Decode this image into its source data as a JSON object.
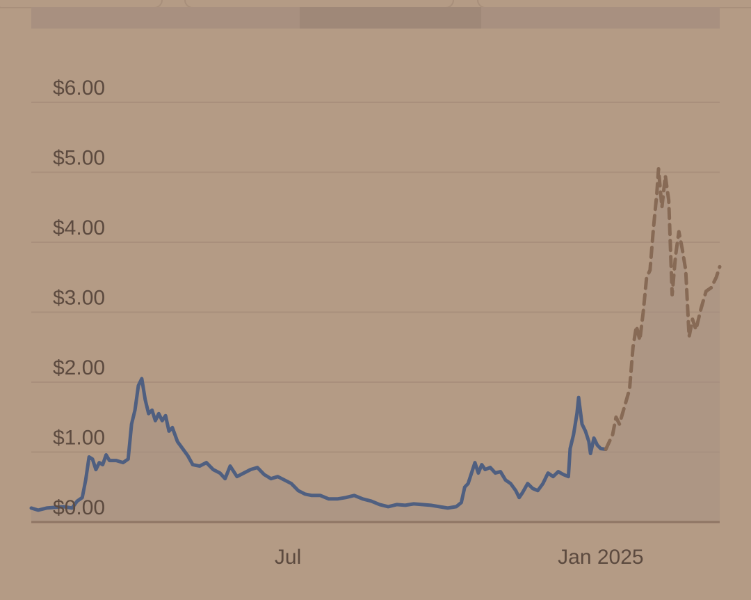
{
  "chart_data": {
    "type": "line",
    "title": "",
    "xlabel": "",
    "ylabel": "",
    "ylim": [
      0,
      6
    ],
    "y_ticks": [
      "$0.00",
      "$1.00",
      "$2.00",
      "$3.00",
      "$4.00",
      "$5.00",
      "$6.00"
    ],
    "y_tick_values": [
      0,
      1,
      2,
      3,
      4,
      5,
      6
    ],
    "x_ticks": [
      {
        "label": "Jul",
        "date": "2024-07-01"
      },
      {
        "label": "Jan 2025",
        "date": "2025-01-01"
      }
    ],
    "xlim": [
      "2024-02-01",
      "2025-03-12"
    ],
    "grid": true,
    "legend": "none",
    "colors": {
      "historical": "#4f5f80",
      "projected": "#876a55",
      "grid": "#a98f7c",
      "background": "#b49b85"
    },
    "series": [
      {
        "style": "solid",
        "points": [
          [
            "2024-02-01",
            0.2
          ],
          [
            "2024-02-05",
            0.17
          ],
          [
            "2024-02-10",
            0.2
          ],
          [
            "2024-02-15",
            0.21
          ],
          [
            "2024-02-20",
            0.22
          ],
          [
            "2024-02-25",
            0.2
          ],
          [
            "2024-02-28",
            0.3
          ],
          [
            "2024-03-02",
            0.35
          ],
          [
            "2024-03-04",
            0.6
          ],
          [
            "2024-03-06",
            0.93
          ],
          [
            "2024-03-08",
            0.9
          ],
          [
            "2024-03-10",
            0.75
          ],
          [
            "2024-03-12",
            0.85
          ],
          [
            "2024-03-14",
            0.82
          ],
          [
            "2024-03-16",
            0.96
          ],
          [
            "2024-03-18",
            0.88
          ],
          [
            "2024-03-22",
            0.88
          ],
          [
            "2024-03-26",
            0.85
          ],
          [
            "2024-03-29",
            0.9
          ],
          [
            "2024-03-31",
            1.4
          ],
          [
            "2024-04-02",
            1.6
          ],
          [
            "2024-04-04",
            1.95
          ],
          [
            "2024-04-06",
            2.05
          ],
          [
            "2024-04-08",
            1.75
          ],
          [
            "2024-04-10",
            1.55
          ],
          [
            "2024-04-12",
            1.6
          ],
          [
            "2024-04-14",
            1.45
          ],
          [
            "2024-04-16",
            1.55
          ],
          [
            "2024-04-18",
            1.45
          ],
          [
            "2024-04-20",
            1.52
          ],
          [
            "2024-04-22",
            1.3
          ],
          [
            "2024-04-24",
            1.35
          ],
          [
            "2024-04-27",
            1.15
          ],
          [
            "2024-04-30",
            1.05
          ],
          [
            "2024-05-03",
            0.95
          ],
          [
            "2024-05-06",
            0.82
          ],
          [
            "2024-05-10",
            0.8
          ],
          [
            "2024-05-14",
            0.85
          ],
          [
            "2024-05-18",
            0.75
          ],
          [
            "2024-05-22",
            0.7
          ],
          [
            "2024-05-25",
            0.62
          ],
          [
            "2024-05-28",
            0.8
          ],
          [
            "2024-06-01",
            0.65
          ],
          [
            "2024-06-05",
            0.7
          ],
          [
            "2024-06-09",
            0.75
          ],
          [
            "2024-06-13",
            0.78
          ],
          [
            "2024-06-17",
            0.68
          ],
          [
            "2024-06-21",
            0.62
          ],
          [
            "2024-06-25",
            0.65
          ],
          [
            "2024-06-29",
            0.6
          ],
          [
            "2024-07-03",
            0.55
          ],
          [
            "2024-07-07",
            0.45
          ],
          [
            "2024-07-11",
            0.4
          ],
          [
            "2024-07-15",
            0.38
          ],
          [
            "2024-07-20",
            0.38
          ],
          [
            "2024-07-25",
            0.33
          ],
          [
            "2024-07-30",
            0.33
          ],
          [
            "2024-08-04",
            0.35
          ],
          [
            "2024-08-09",
            0.38
          ],
          [
            "2024-08-14",
            0.33
          ],
          [
            "2024-08-19",
            0.3
          ],
          [
            "2024-08-24",
            0.25
          ],
          [
            "2024-08-29",
            0.22
          ],
          [
            "2024-09-03",
            0.25
          ],
          [
            "2024-09-08",
            0.24
          ],
          [
            "2024-09-13",
            0.26
          ],
          [
            "2024-09-18",
            0.25
          ],
          [
            "2024-09-23",
            0.24
          ],
          [
            "2024-09-28",
            0.22
          ],
          [
            "2024-10-03",
            0.2
          ],
          [
            "2024-10-08",
            0.22
          ],
          [
            "2024-10-11",
            0.28
          ],
          [
            "2024-10-13",
            0.5
          ],
          [
            "2024-10-15",
            0.55
          ],
          [
            "2024-10-17",
            0.7
          ],
          [
            "2024-10-19",
            0.85
          ],
          [
            "2024-10-21",
            0.7
          ],
          [
            "2024-10-23",
            0.82
          ],
          [
            "2024-10-25",
            0.75
          ],
          [
            "2024-10-28",
            0.78
          ],
          [
            "2024-10-31",
            0.7
          ],
          [
            "2024-11-03",
            0.72
          ],
          [
            "2024-11-06",
            0.6
          ],
          [
            "2024-11-09",
            0.55
          ],
          [
            "2024-11-12",
            0.45
          ],
          [
            "2024-11-14",
            0.35
          ],
          [
            "2024-11-16",
            0.42
          ],
          [
            "2024-11-19",
            0.55
          ],
          [
            "2024-11-22",
            0.48
          ],
          [
            "2024-11-25",
            0.45
          ],
          [
            "2024-11-28",
            0.55
          ],
          [
            "2024-12-01",
            0.7
          ],
          [
            "2024-12-04",
            0.65
          ],
          [
            "2024-12-07",
            0.72
          ],
          [
            "2024-12-10",
            0.68
          ],
          [
            "2024-12-13",
            0.65
          ],
          [
            "2024-12-14",
            1.05
          ],
          [
            "2024-12-16",
            1.25
          ],
          [
            "2024-12-18",
            1.55
          ],
          [
            "2024-12-19",
            1.78
          ],
          [
            "2024-12-21",
            1.4
          ],
          [
            "2024-12-23",
            1.3
          ],
          [
            "2024-12-25",
            1.15
          ],
          [
            "2024-12-26",
            0.98
          ],
          [
            "2024-12-28",
            1.2
          ],
          [
            "2024-12-30",
            1.1
          ],
          [
            "2025-01-01",
            1.05
          ],
          [
            "2025-01-04",
            1.04
          ]
        ]
      },
      {
        "style": "dashed",
        "points": [
          [
            "2025-01-04",
            1.04
          ],
          [
            "2025-01-08",
            1.25
          ],
          [
            "2025-01-10",
            1.5
          ],
          [
            "2025-01-12",
            1.4
          ],
          [
            "2025-01-15",
            1.65
          ],
          [
            "2025-01-18",
            1.9
          ],
          [
            "2025-01-20",
            2.5
          ],
          [
            "2025-01-22",
            2.8
          ],
          [
            "2025-01-24",
            2.6
          ],
          [
            "2025-01-26",
            3.0
          ],
          [
            "2025-01-28",
            3.5
          ],
          [
            "2025-01-30",
            3.6
          ],
          [
            "2025-02-01",
            4.2
          ],
          [
            "2025-02-03",
            4.7
          ],
          [
            "2025-02-04",
            5.05
          ],
          [
            "2025-02-06",
            4.5
          ],
          [
            "2025-02-08",
            4.95
          ],
          [
            "2025-02-10",
            4.6
          ],
          [
            "2025-02-12",
            3.25
          ],
          [
            "2025-02-14",
            3.8
          ],
          [
            "2025-02-16",
            4.15
          ],
          [
            "2025-02-18",
            3.9
          ],
          [
            "2025-02-20",
            3.6
          ],
          [
            "2025-02-22",
            2.65
          ],
          [
            "2025-02-24",
            2.9
          ],
          [
            "2025-02-26",
            2.75
          ],
          [
            "2025-03-01",
            3.05
          ],
          [
            "2025-03-04",
            3.3
          ],
          [
            "2025-03-07",
            3.35
          ],
          [
            "2025-03-10",
            3.5
          ],
          [
            "2025-03-12",
            3.65
          ]
        ]
      }
    ]
  }
}
